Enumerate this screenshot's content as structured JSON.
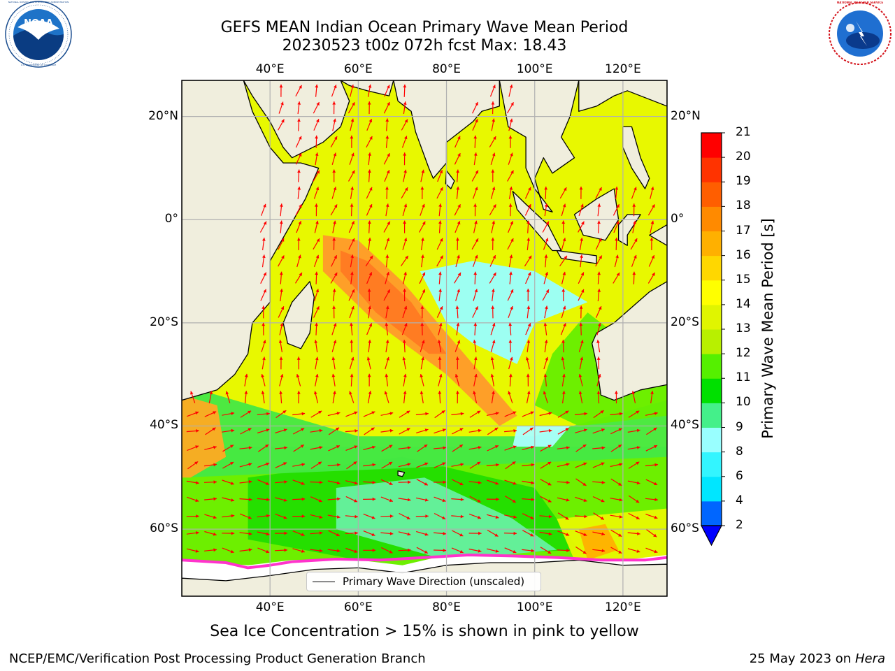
{
  "header": {
    "title_line1": "GEFS MEAN Indian Ocean Primary Wave Mean Period",
    "title_line2": "20230523 t00z 072h fcst   Max: 18.43"
  },
  "logos": {
    "left": {
      "text": "NOAA",
      "ring_text": "NATIONAL OCEANIC AND ATMOSPHERIC ADMINISTRATION",
      "bottom_text": "U.S. DEPARTMENT OF COMMERCE"
    },
    "right": {
      "ring_text": "NATIONAL WEATHER SERVICE"
    }
  },
  "map": {
    "lon_range": [
      20,
      130
    ],
    "lat_range": [
      -73,
      27
    ],
    "lon_ticks": [
      {
        "value": 40,
        "label": "40°E"
      },
      {
        "value": 60,
        "label": "60°E"
      },
      {
        "value": 80,
        "label": "80°E"
      },
      {
        "value": 100,
        "label": "100°E"
      },
      {
        "value": 120,
        "label": "120°E"
      }
    ],
    "lat_ticks": [
      {
        "value": 20,
        "label": "20°N"
      },
      {
        "value": 0,
        "label": "0°"
      },
      {
        "value": -20,
        "label": "20°S"
      },
      {
        "value": -40,
        "label": "40°S"
      },
      {
        "value": -60,
        "label": "60°S"
      }
    ],
    "colors": {
      "land": "#f0eedd",
      "ice_free_ocean": "#ffffff",
      "grid": "#b0b0b0",
      "arrow": "#ff0000",
      "sea_ice_edge": "#ff33cc"
    }
  },
  "legend": {
    "label": "Primary Wave Direction (unscaled)"
  },
  "colorbar": {
    "title": "Primary Wave Mean Period [s]",
    "ticks": [
      "2",
      "4",
      "6",
      "8",
      "9",
      "10",
      "11",
      "12",
      "13",
      "14",
      "15",
      "16",
      "17",
      "18",
      "19",
      "20",
      "21"
    ],
    "colors": [
      "#0066ff",
      "#00e6ff",
      "#33f5ff",
      "#99ffff",
      "#44f08a",
      "#00e000",
      "#55f000",
      "#b8f000",
      "#e0f500",
      "#ffff00",
      "#ffd700",
      "#ffb000",
      "#ff8a00",
      "#ff5e00",
      "#ff3300",
      "#ff0000"
    ],
    "extend_color": "#0000ff"
  },
  "note": "Sea Ice Concentration > 15% is shown in pink to yellow",
  "footer": {
    "left": "NCEP/EMC/Verification Post Processing Product Generation Branch",
    "right_date": "25 May 2023 on",
    "right_machine": "Hera"
  }
}
